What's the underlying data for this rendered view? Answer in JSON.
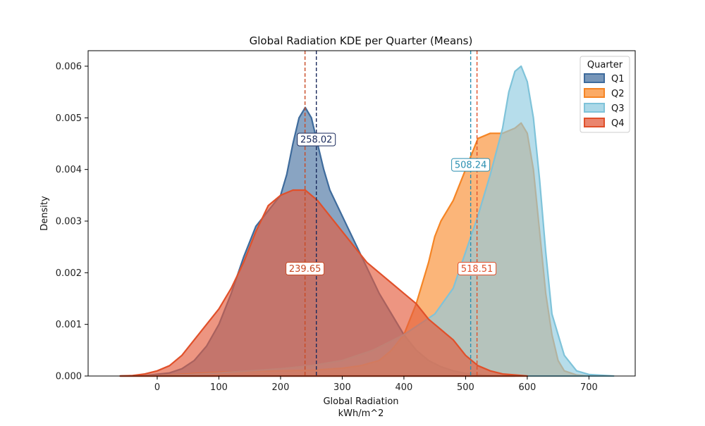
{
  "chart_data": {
    "type": "area",
    "title": "Global Radiation KDE per Quarter (Means)",
    "xlabel": "Global Radiation",
    "xlabel_unit": "kWh/m^2",
    "ylabel": "Density",
    "xlim": [
      -112,
      775
    ],
    "ylim": [
      0,
      0.0063
    ],
    "x_ticks": [
      0,
      100,
      200,
      300,
      400,
      500,
      600,
      700
    ],
    "y_ticks": [
      0.0,
      0.001,
      0.002,
      0.003,
      0.004,
      0.005,
      0.006
    ],
    "y_tick_labels": [
      "0.000",
      "0.001",
      "0.002",
      "0.003",
      "0.004",
      "0.005",
      "0.006"
    ],
    "grid": false,
    "legend": {
      "title": "Quarter",
      "placement": "top-right"
    },
    "series": [
      {
        "name": "Q1",
        "color": "#4a73a2",
        "edge": "#3e6b9c",
        "mean": 258.02,
        "mean_label": "258.02",
        "mean_line_color": "#1a2a5c",
        "label_y": 0.00458,
        "points": [
          [
            -60,
            0
          ],
          [
            -20,
            1e-05
          ],
          [
            20,
            6e-05
          ],
          [
            40,
            0.00014
          ],
          [
            60,
            0.0003
          ],
          [
            80,
            0.00058
          ],
          [
            100,
            0.001
          ],
          [
            120,
            0.0016
          ],
          [
            140,
            0.0023
          ],
          [
            160,
            0.0029
          ],
          [
            180,
            0.0032
          ],
          [
            200,
            0.0035
          ],
          [
            210,
            0.0039
          ],
          [
            220,
            0.0045
          ],
          [
            230,
            0.005
          ],
          [
            240,
            0.0052
          ],
          [
            250,
            0.005
          ],
          [
            260,
            0.0045
          ],
          [
            270,
            0.004
          ],
          [
            280,
            0.0036
          ],
          [
            300,
            0.0031
          ],
          [
            320,
            0.0026
          ],
          [
            340,
            0.0021
          ],
          [
            360,
            0.0016
          ],
          [
            380,
            0.0012
          ],
          [
            400,
            0.0008
          ],
          [
            420,
            0.0005
          ],
          [
            440,
            0.0003
          ],
          [
            460,
            0.00018
          ],
          [
            480,
            0.0001
          ],
          [
            500,
            5e-05
          ],
          [
            540,
            1e-05
          ],
          [
            580,
            0
          ]
        ]
      },
      {
        "name": "Q2",
        "color": "#f98e31",
        "edge": "#f58525",
        "mean": 518.51,
        "mean_label": "518.51",
        "mean_line_color": "#e0502a",
        "label_y": 0.00208,
        "points": [
          [
            -60,
            0
          ],
          [
            0,
            1e-05
          ],
          [
            50,
            4e-05
          ],
          [
            100,
            7e-05
          ],
          [
            150,
            9e-05
          ],
          [
            200,
            0.0001
          ],
          [
            250,
            0.00011
          ],
          [
            300,
            0.00015
          ],
          [
            330,
            0.0002
          ],
          [
            360,
            0.0003
          ],
          [
            380,
            0.0005
          ],
          [
            400,
            0.0008
          ],
          [
            420,
            0.0014
          ],
          [
            440,
            0.0022
          ],
          [
            450,
            0.0027
          ],
          [
            460,
            0.003
          ],
          [
            480,
            0.0034
          ],
          [
            500,
            0.004
          ],
          [
            520,
            0.0046
          ],
          [
            540,
            0.0047
          ],
          [
            560,
            0.0047
          ],
          [
            580,
            0.0048
          ],
          [
            590,
            0.0049
          ],
          [
            600,
            0.0047
          ],
          [
            610,
            0.004
          ],
          [
            620,
            0.0028
          ],
          [
            630,
            0.0016
          ],
          [
            640,
            0.0008
          ],
          [
            650,
            0.0003
          ],
          [
            660,
            0.0001
          ],
          [
            680,
            2e-05
          ],
          [
            700,
            0
          ]
        ]
      },
      {
        "name": "Q3",
        "color": "#8fcbe0",
        "edge": "#7fc3d9",
        "mean": 508.24,
        "mean_label": "508.24",
        "mean_line_color": "#2a8fb0",
        "label_y": 0.00409,
        "points": [
          [
            -60,
            0
          ],
          [
            0,
            1e-05
          ],
          [
            50,
            3e-05
          ],
          [
            100,
            6e-05
          ],
          [
            150,
            0.0001
          ],
          [
            200,
            0.00014
          ],
          [
            250,
            0.0002
          ],
          [
            300,
            0.0003
          ],
          [
            350,
            0.0005
          ],
          [
            400,
            0.0008
          ],
          [
            450,
            0.0012
          ],
          [
            480,
            0.0017
          ],
          [
            500,
            0.0024
          ],
          [
            520,
            0.0031
          ],
          [
            540,
            0.0039
          ],
          [
            560,
            0.0048
          ],
          [
            570,
            0.0055
          ],
          [
            580,
            0.0059
          ],
          [
            590,
            0.006
          ],
          [
            600,
            0.0057
          ],
          [
            610,
            0.005
          ],
          [
            620,
            0.0038
          ],
          [
            630,
            0.0024
          ],
          [
            640,
            0.0012
          ],
          [
            660,
            0.0004
          ],
          [
            680,
            0.0001
          ],
          [
            700,
            3e-05
          ],
          [
            740,
            0
          ]
        ]
      },
      {
        "name": "Q4",
        "color": "#e35c3d",
        "edge": "#e0502a",
        "mean": 239.65,
        "mean_label": "239.65",
        "mean_line_color": "#c84a24",
        "label_y": 0.00208,
        "points": [
          [
            -60,
            0
          ],
          [
            -40,
            1e-05
          ],
          [
            -20,
            4e-05
          ],
          [
            0,
            0.0001
          ],
          [
            20,
            0.0002
          ],
          [
            40,
            0.0004
          ],
          [
            60,
            0.0007
          ],
          [
            80,
            0.001
          ],
          [
            100,
            0.0013
          ],
          [
            120,
            0.0017
          ],
          [
            140,
            0.0022
          ],
          [
            160,
            0.0028
          ],
          [
            180,
            0.0033
          ],
          [
            200,
            0.0035
          ],
          [
            220,
            0.0036
          ],
          [
            240,
            0.0036
          ],
          [
            260,
            0.0034
          ],
          [
            280,
            0.0031
          ],
          [
            300,
            0.0028
          ],
          [
            320,
            0.0025
          ],
          [
            340,
            0.0022
          ],
          [
            360,
            0.002
          ],
          [
            380,
            0.0018
          ],
          [
            400,
            0.0016
          ],
          [
            420,
            0.0014
          ],
          [
            440,
            0.0011
          ],
          [
            460,
            0.0009
          ],
          [
            480,
            0.0007
          ],
          [
            500,
            0.0004
          ],
          [
            520,
            0.0002
          ],
          [
            540,
            0.0001
          ],
          [
            560,
            4e-05
          ],
          [
            580,
            2e-05
          ],
          [
            600,
            0
          ]
        ]
      }
    ]
  }
}
